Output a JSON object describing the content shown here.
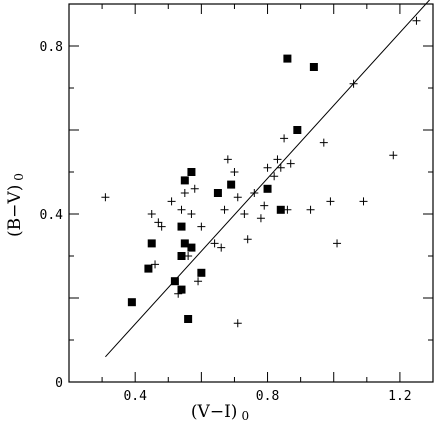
{
  "chart_data": {
    "type": "scatter",
    "title": "",
    "xlabel": "(V−I)",
    "xlabel_sub": "0",
    "ylabel": "(B−V)",
    "ylabel_sub": "0",
    "xlim": [
      0.2,
      1.3
    ],
    "ylim": [
      0,
      0.9
    ],
    "xticks": [
      {
        "value": 0.4,
        "label": "0.4"
      },
      {
        "value": 0.8,
        "label": "0.8"
      },
      {
        "value": 1.2,
        "label": "1.2"
      }
    ],
    "yticks": [
      {
        "value": 0,
        "label": "0"
      },
      {
        "value": 0.4,
        "label": "0.4"
      },
      {
        "value": 0.8,
        "label": "0.8"
      }
    ],
    "grid": false,
    "series": [
      {
        "marker": "filled-square",
        "color": "#000000",
        "points": [
          [
            0.39,
            0.19
          ],
          [
            0.44,
            0.27
          ],
          [
            0.45,
            0.33
          ],
          [
            0.52,
            0.24
          ],
          [
            0.54,
            0.22
          ],
          [
            0.54,
            0.3
          ],
          [
            0.54,
            0.37
          ],
          [
            0.55,
            0.33
          ],
          [
            0.55,
            0.48
          ],
          [
            0.56,
            0.15
          ],
          [
            0.57,
            0.32
          ],
          [
            0.57,
            0.5
          ],
          [
            0.6,
            0.26
          ],
          [
            0.65,
            0.45
          ],
          [
            0.69,
            0.47
          ],
          [
            0.8,
            0.46
          ],
          [
            0.84,
            0.41
          ],
          [
            0.86,
            0.77
          ],
          [
            0.89,
            0.6
          ],
          [
            0.94,
            0.75
          ]
        ]
      },
      {
        "marker": "plus",
        "color": "#000000",
        "points": [
          [
            0.31,
            0.44
          ],
          [
            0.45,
            0.4
          ],
          [
            0.46,
            0.28
          ],
          [
            0.47,
            0.38
          ],
          [
            0.48,
            0.37
          ],
          [
            0.51,
            0.43
          ],
          [
            0.53,
            0.21
          ],
          [
            0.54,
            0.41
          ],
          [
            0.55,
            0.45
          ],
          [
            0.56,
            0.3
          ],
          [
            0.57,
            0.4
          ],
          [
            0.58,
            0.46
          ],
          [
            0.59,
            0.24
          ],
          [
            0.6,
            0.37
          ],
          [
            0.64,
            0.33
          ],
          [
            0.66,
            0.32
          ],
          [
            0.67,
            0.41
          ],
          [
            0.68,
            0.53
          ],
          [
            0.7,
            0.5
          ],
          [
            0.71,
            0.14
          ],
          [
            0.71,
            0.44
          ],
          [
            0.73,
            0.4
          ],
          [
            0.74,
            0.34
          ],
          [
            0.76,
            0.45
          ],
          [
            0.78,
            0.39
          ],
          [
            0.79,
            0.42
          ],
          [
            0.8,
            0.51
          ],
          [
            0.82,
            0.49
          ],
          [
            0.83,
            0.53
          ],
          [
            0.84,
            0.51
          ],
          [
            0.85,
            0.58
          ],
          [
            0.86,
            0.41
          ],
          [
            0.87,
            0.52
          ],
          [
            0.93,
            0.41
          ],
          [
            0.97,
            0.57
          ],
          [
            0.99,
            0.43
          ],
          [
            1.01,
            0.33
          ],
          [
            1.06,
            0.71
          ],
          [
            1.09,
            0.43
          ],
          [
            1.18,
            0.54
          ],
          [
            1.25,
            0.86
          ]
        ]
      }
    ],
    "fit_line": {
      "x": [
        0.31,
        1.29
      ],
      "y": [
        0.06,
        0.91
      ]
    }
  }
}
